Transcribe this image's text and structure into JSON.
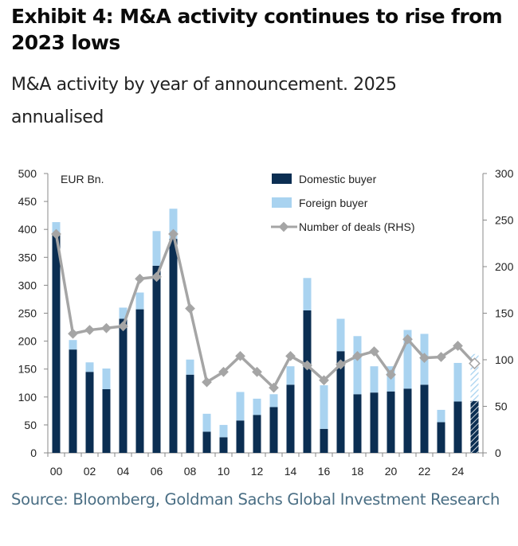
{
  "header": {
    "title": "Exhibit 4: M&A activity continues to rise from 2023 lows",
    "subtitle": "M&A activity by year of announcement. 2025 annualised"
  },
  "footer": {
    "source": "Source: Bloomberg, Goldman Sachs Global Investment Research"
  },
  "colors": {
    "domestic": "#0b2e52",
    "foreign": "#a9d3f0",
    "deals_line": "#a5a5a5",
    "axis": "#888888"
  },
  "chart_data": {
    "type": "bar",
    "stacked": true,
    "unit_label": "EUR Bn.",
    "categories": [
      "00",
      "01",
      "02",
      "03",
      "04",
      "05",
      "06",
      "07",
      "08",
      "09",
      "10",
      "11",
      "12",
      "13",
      "14",
      "15",
      "16",
      "17",
      "18",
      "19",
      "20",
      "21",
      "22",
      "23",
      "24",
      "25"
    ],
    "x_tick_labels": [
      "00",
      "02",
      "04",
      "06",
      "08",
      "10",
      "12",
      "14",
      "16",
      "18",
      "20",
      "22",
      "24"
    ],
    "series": [
      {
        "name": "Domestic buyer",
        "axis": "left",
        "values": [
          390,
          185,
          145,
          114,
          240,
          257,
          335,
          383,
          140,
          38,
          28,
          58,
          68,
          82,
          122,
          255,
          43,
          182,
          105,
          108,
          110,
          115,
          122,
          55,
          92,
          93
        ]
      },
      {
        "name": "Foreign buyer",
        "axis": "left",
        "values": [
          23,
          17,
          17,
          37,
          20,
          30,
          62,
          54,
          27,
          32,
          22,
          51,
          29,
          23,
          33,
          58,
          78,
          58,
          104,
          47,
          45,
          105,
          91,
          22,
          69,
          84
        ]
      },
      {
        "name": "Number of deals (RHS)",
        "type": "line",
        "axis": "right",
        "values": [
          235,
          128,
          132,
          134,
          136,
          187,
          189,
          235,
          155,
          76,
          87,
          104,
          87,
          70,
          104,
          94,
          78,
          95,
          104,
          109,
          84,
          122,
          102,
          103,
          115,
          96
        ]
      }
    ],
    "projected_category": "25",
    "y_left": {
      "min": 0,
      "max": 500,
      "ticks": [
        0,
        50,
        100,
        150,
        200,
        250,
        300,
        350,
        400,
        450,
        500
      ]
    },
    "y_right": {
      "min": 0,
      "max": 300,
      "ticks": [
        0,
        50,
        100,
        150,
        200,
        250,
        300
      ]
    },
    "legend": {
      "position": "top-right",
      "entries": [
        "Domestic buyer",
        "Foreign buyer",
        "Number of deals (RHS)"
      ]
    },
    "grid": false
  }
}
